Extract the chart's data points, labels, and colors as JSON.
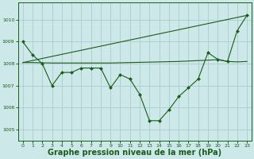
{
  "bg_color": "#cce8e8",
  "grid_color": "#aacccc",
  "line_color": "#1a5c1a",
  "marker_color": "#1a5c1a",
  "xlabel": "Graphe pression niveau de la mer (hPa)",
  "xlabel_fontsize": 7,
  "ylim": [
    1004.5,
    1010.8
  ],
  "xlim": [
    -0.5,
    23.5
  ],
  "yticks": [
    1005,
    1006,
    1007,
    1008,
    1009,
    1010
  ],
  "xticks": [
    0,
    1,
    2,
    3,
    4,
    5,
    6,
    7,
    8,
    9,
    10,
    11,
    12,
    13,
    14,
    15,
    16,
    17,
    18,
    19,
    20,
    21,
    22,
    23
  ],
  "series": [
    {
      "x": [
        0,
        1,
        2,
        3,
        4,
        5,
        6,
        7,
        8,
        9,
        10,
        11,
        12,
        13,
        14,
        15,
        16,
        17,
        18,
        19,
        20,
        21,
        22,
        23
      ],
      "y": [
        1009.0,
        1008.4,
        1008.0,
        1007.0,
        1007.6,
        1007.6,
        1007.8,
        1007.8,
        1007.8,
        1006.9,
        1007.5,
        1007.3,
        1006.6,
        1005.4,
        1005.4,
        1005.9,
        1006.5,
        1006.9,
        1007.3,
        1008.5,
        1008.2,
        1008.1,
        1009.5,
        1010.2
      ],
      "has_markers": true
    },
    {
      "x": [
        0,
        1,
        2,
        3,
        4,
        5,
        6,
        7,
        8,
        9,
        10,
        11,
        12,
        13,
        14,
        15,
        16,
        17,
        18,
        19,
        20,
        21,
        22,
        23
      ],
      "y": [
        1008.05,
        1008.05,
        1008.04,
        1008.03,
        1008.03,
        1008.03,
        1008.03,
        1008.03,
        1008.03,
        1008.03,
        1008.04,
        1008.05,
        1008.06,
        1008.07,
        1008.08,
        1008.09,
        1008.1,
        1008.12,
        1008.14,
        1008.16,
        1008.18,
        1008.1,
        1008.08,
        1008.1
      ],
      "has_markers": false
    },
    {
      "x": [
        0,
        23
      ],
      "y": [
        1008.05,
        1010.2
      ],
      "has_markers": false
    }
  ]
}
